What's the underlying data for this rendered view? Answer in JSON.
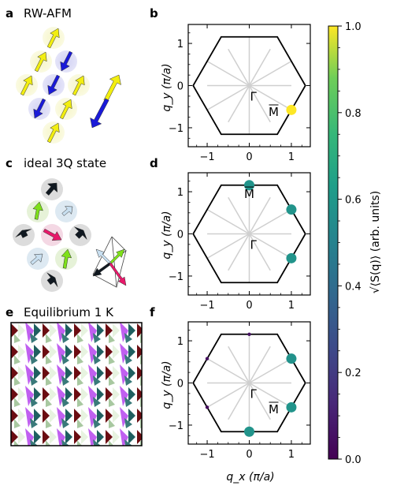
{
  "panels": {
    "a": {
      "letter": "a",
      "title": "RW-AFM"
    },
    "b": {
      "letter": "b"
    },
    "c": {
      "letter": "c",
      "title": "ideal 3Q state"
    },
    "d": {
      "letter": "d"
    },
    "e": {
      "letter": "e",
      "title": "Equilibrium 1 K"
    },
    "f": {
      "letter": "f"
    }
  },
  "axes": {
    "ylabel": "q_y (π/a)",
    "xlabel": "q_x (π/a)",
    "xticks": [
      "−1",
      "0",
      "1"
    ],
    "yticks": [
      "1",
      "0",
      "−1"
    ]
  },
  "points": {
    "gamma": "Γ",
    "M": "M"
  },
  "colorbar": {
    "label": "√⟨S(q)⟩ (arb. units)",
    "ticks": [
      "1.0",
      "0.8",
      "0.6",
      "0.4",
      "0.2",
      "0.0"
    ]
  },
  "chart_data": [
    {
      "type": "scatter",
      "panel": "b",
      "xlim": [
        -1.45,
        1.45
      ],
      "ylim": [
        -1.45,
        1.45
      ],
      "points": [
        {
          "x": 1.0,
          "y": -0.577,
          "value": 1.0
        }
      ]
    },
    {
      "type": "scatter",
      "panel": "d",
      "xlim": [
        -1.45,
        1.45
      ],
      "ylim": [
        -1.45,
        1.45
      ],
      "points": [
        {
          "x": 0.0,
          "y": 1.155,
          "value": 0.58
        },
        {
          "x": 1.0,
          "y": 0.577,
          "value": 0.58
        },
        {
          "x": 1.0,
          "y": -0.577,
          "value": 0.58
        }
      ]
    },
    {
      "type": "scatter",
      "panel": "f",
      "xlim": [
        -1.45,
        1.45
      ],
      "ylim": [
        -1.45,
        1.45
      ],
      "points": [
        {
          "x": 1.0,
          "y": 0.577,
          "value": 0.57
        },
        {
          "x": 1.0,
          "y": -0.577,
          "value": 0.58
        },
        {
          "x": 0.0,
          "y": -1.155,
          "value": 0.58
        },
        {
          "x": 0.0,
          "y": 1.155,
          "value": 0.05
        },
        {
          "x": -1.0,
          "y": 0.577,
          "value": 0.05
        },
        {
          "x": -1.0,
          "y": -0.577,
          "value": 0.03
        }
      ]
    }
  ],
  "colors": {
    "yellow_spin": "#f2ee10",
    "blue_spin": "#1a1ad8",
    "green_spin": "#7ee01a",
    "pink_spin": "#e8186a",
    "lightblue_spin": "#c8dff0",
    "dark_spin": "#101820"
  }
}
